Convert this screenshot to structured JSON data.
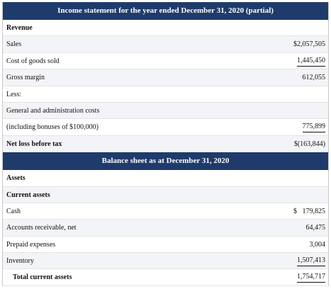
{
  "sections": [
    {
      "title": "Income statement for the year ended December 31, 2020 (partial)",
      "rows": [
        {
          "label": "Revenue",
          "bold": true
        },
        {
          "label": "Sales",
          "value": "$2,057,505"
        },
        {
          "label": "Cost of goods sold",
          "value": "1,445,450",
          "underline": true
        },
        {
          "label": "Gross margin",
          "value": "612,055"
        },
        {
          "label": "Less:"
        },
        {
          "label": "General and administration costs"
        },
        {
          "label": "(including bonuses of $100,000)",
          "value": "775,899",
          "underline": true
        },
        {
          "label": "Net loss before tax",
          "value": "$(163,844)",
          "bold": true
        }
      ]
    },
    {
      "title": "Balance sheet as at December 31, 2020",
      "rows": [
        {
          "label": "Assets",
          "bold": true
        },
        {
          "label": "Current assets",
          "bold": true
        },
        {
          "label": "Cash",
          "value": "$   179,825"
        },
        {
          "label": "Accounts receivable, net",
          "value": "64,475"
        },
        {
          "label": "Prepaid expenses",
          "value": "3,004"
        },
        {
          "label": "Inventory",
          "value": "1,507,413",
          "underline": true
        },
        {
          "label": "Total current assets",
          "value": "1,754,717",
          "bold": true,
          "indent": true,
          "underline": true
        }
      ]
    }
  ]
}
